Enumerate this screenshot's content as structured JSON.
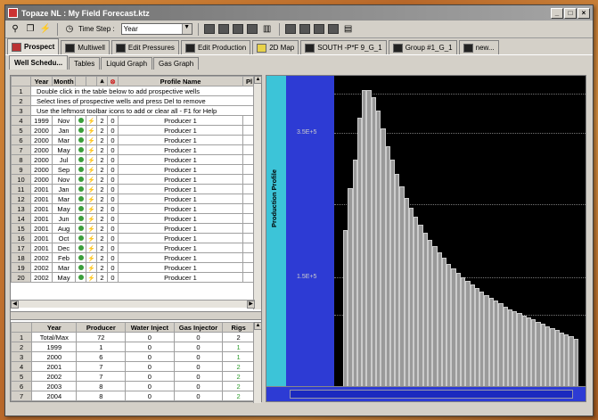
{
  "window": {
    "title": "Topaze NL : My Field Forecast.ktz"
  },
  "toolbar": {
    "time_step_label": "Time Step :",
    "time_step_value": "Year"
  },
  "tabs": [
    "Prospect",
    "Multiwell",
    "Edit Pressures",
    "Edit Production",
    "2D Map",
    "SOUTH -P*F 9_G_1",
    "Group #1_G_1",
    "new..."
  ],
  "subtabs": [
    "Well Schedu...",
    "Tables",
    "Liquid Graph",
    "Gas Graph"
  ],
  "schedule": {
    "headers": [
      "Year",
      "Month",
      "",
      "",
      "",
      "",
      "Profile Name",
      "Pl"
    ],
    "messages": [
      "Double click in the table below to add prospective wells",
      "Select lines of prospective wells and press Del to remove",
      "Use the leftmost toolbar icons to add or clear all  -  F1 for Help"
    ],
    "rows": [
      [
        "4",
        "1999",
        "Nov",
        "2",
        "0",
        "Producer 1"
      ],
      [
        "5",
        "2000",
        "Jan",
        "2",
        "0",
        "Producer 1"
      ],
      [
        "6",
        "2000",
        "Mar",
        "2",
        "0",
        "Producer 1"
      ],
      [
        "7",
        "2000",
        "May",
        "2",
        "0",
        "Producer 1"
      ],
      [
        "8",
        "2000",
        "Jul",
        "2",
        "0",
        "Producer 1"
      ],
      [
        "9",
        "2000",
        "Sep",
        "2",
        "0",
        "Producer 1"
      ],
      [
        "10",
        "2000",
        "Nov",
        "2",
        "0",
        "Producer 1"
      ],
      [
        "11",
        "2001",
        "Jan",
        "2",
        "0",
        "Producer 1"
      ],
      [
        "12",
        "2001",
        "Mar",
        "2",
        "0",
        "Producer 1"
      ],
      [
        "13",
        "2001",
        "May",
        "2",
        "0",
        "Producer 1"
      ],
      [
        "14",
        "2001",
        "Jun",
        "2",
        "0",
        "Producer 1"
      ],
      [
        "15",
        "2001",
        "Aug",
        "2",
        "0",
        "Producer 1"
      ],
      [
        "16",
        "2001",
        "Oct",
        "2",
        "0",
        "Producer 1"
      ],
      [
        "17",
        "2001",
        "Dec",
        "2",
        "0",
        "Producer 1"
      ],
      [
        "18",
        "2002",
        "Feb",
        "2",
        "0",
        "Producer 1"
      ],
      [
        "19",
        "2002",
        "Mar",
        "2",
        "0",
        "Producer 1"
      ],
      [
        "20",
        "2002",
        "May",
        "2",
        "0",
        "Producer 1"
      ]
    ]
  },
  "summary": {
    "headers": [
      "",
      "Year",
      "Producer",
      "Water Inject",
      "Gas Injector",
      "Rigs"
    ],
    "rows": [
      [
        "1",
        "Total/Max",
        "72",
        "0",
        "0",
        "2"
      ],
      [
        "2",
        "1999",
        "1",
        "0",
        "0",
        "1"
      ],
      [
        "3",
        "2000",
        "6",
        "0",
        "0",
        "1"
      ],
      [
        "4",
        "2001",
        "7",
        "0",
        "0",
        "2"
      ],
      [
        "5",
        "2002",
        "7",
        "0",
        "0",
        "2"
      ],
      [
        "6",
        "2003",
        "8",
        "0",
        "0",
        "2"
      ],
      [
        "7",
        "2004",
        "8",
        "0",
        "0",
        "2"
      ]
    ]
  },
  "chart": {
    "y_label": "Production Profile",
    "ticks": [
      "3.5E+5",
      "1.5E+5"
    ]
  },
  "chart_data": {
    "type": "bar",
    "ylabel": "Production Profile",
    "y_ticks": [
      350000,
      150000
    ],
    "values": [
      200000,
      260000,
      300000,
      360000,
      400000,
      400000,
      390000,
      370000,
      345000,
      320000,
      300000,
      280000,
      262000,
      246000,
      232000,
      219000,
      207000,
      196000,
      186000,
      177000,
      168000,
      160000,
      152000,
      145000,
      139000,
      133000,
      127000,
      122000,
      117000,
      112000,
      107000,
      103000,
      99000,
      95000,
      91000,
      87000,
      84000,
      81000,
      78000,
      75000,
      72000,
      69000,
      66000,
      63000,
      60000,
      57000,
      54000,
      51000,
      48000,
      45000
    ]
  }
}
